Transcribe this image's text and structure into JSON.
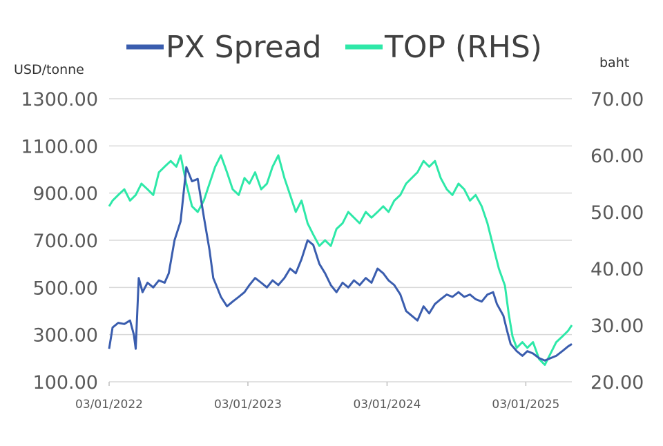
{
  "chart_data": {
    "type": "line",
    "title": "",
    "legend_placement": "top",
    "grid": "horizontal",
    "x_axis": {
      "type": "date",
      "range": [
        "2022-03-01",
        "2025-06-30"
      ],
      "ticks": [
        {
          "date": "2022-03-01",
          "label": "03/01/2022"
        },
        {
          "date": "2023-03-01",
          "label": "03/01/2023"
        },
        {
          "date": "2024-03-01",
          "label": "03/01/2024"
        },
        {
          "date": "2025-03-01",
          "label": "03/01/2025"
        }
      ]
    },
    "y_left": {
      "unit": "USD/tonne",
      "range": [
        100,
        1300
      ],
      "ticks": [
        {
          "value": 100,
          "label": "100.00"
        },
        {
          "value": 300,
          "label": "300.00"
        },
        {
          "value": 500,
          "label": "500.00"
        },
        {
          "value": 700,
          "label": "700.00"
        },
        {
          "value": 900,
          "label": "900.00"
        },
        {
          "value": 1100,
          "label": "1100.00"
        },
        {
          "value": 1300,
          "label": "1300.00"
        }
      ]
    },
    "y_right": {
      "unit": "baht",
      "range": [
        20,
        70
      ],
      "ticks": [
        {
          "value": 20,
          "label": "20.00"
        },
        {
          "value": 30,
          "label": "30.00"
        },
        {
          "value": 40,
          "label": "40.00"
        },
        {
          "value": 50,
          "label": "50.00"
        },
        {
          "value": 60,
          "label": "60.00"
        },
        {
          "value": 70,
          "label": "70.00"
        }
      ]
    },
    "series": [
      {
        "name": "PX Spread",
        "axis": "left",
        "color": "#3a5dae",
        "points": [
          [
            "2022-03-01",
            240
          ],
          [
            "2022-03-10",
            330
          ],
          [
            "2022-03-25",
            350
          ],
          [
            "2022-04-10",
            345
          ],
          [
            "2022-04-25",
            360
          ],
          [
            "2022-05-05",
            300
          ],
          [
            "2022-05-10",
            240
          ],
          [
            "2022-05-18",
            540
          ],
          [
            "2022-05-28",
            480
          ],
          [
            "2022-06-10",
            520
          ],
          [
            "2022-06-25",
            500
          ],
          [
            "2022-07-10",
            530
          ],
          [
            "2022-07-25",
            520
          ],
          [
            "2022-08-05",
            560
          ],
          [
            "2022-08-20",
            700
          ],
          [
            "2022-09-05",
            780
          ],
          [
            "2022-09-20",
            1010
          ],
          [
            "2022-10-05",
            950
          ],
          [
            "2022-10-20",
            960
          ],
          [
            "2022-11-05",
            800
          ],
          [
            "2022-11-20",
            660
          ],
          [
            "2022-11-30",
            540
          ],
          [
            "2022-12-10",
            500
          ],
          [
            "2022-12-20",
            460
          ],
          [
            "2023-01-05",
            420
          ],
          [
            "2023-01-20",
            440
          ],
          [
            "2023-02-05",
            460
          ],
          [
            "2023-02-20",
            480
          ],
          [
            "2023-03-05",
            510
          ],
          [
            "2023-03-20",
            540
          ],
          [
            "2023-04-05",
            520
          ],
          [
            "2023-04-20",
            500
          ],
          [
            "2023-05-05",
            530
          ],
          [
            "2023-05-20",
            510
          ],
          [
            "2023-06-05",
            540
          ],
          [
            "2023-06-20",
            580
          ],
          [
            "2023-07-05",
            560
          ],
          [
            "2023-07-20",
            620
          ],
          [
            "2023-08-05",
            700
          ],
          [
            "2023-08-20",
            680
          ],
          [
            "2023-09-05",
            600
          ],
          [
            "2023-09-20",
            560
          ],
          [
            "2023-10-05",
            510
          ],
          [
            "2023-10-20",
            480
          ],
          [
            "2023-11-05",
            520
          ],
          [
            "2023-11-20",
            500
          ],
          [
            "2023-12-05",
            530
          ],
          [
            "2023-12-20",
            510
          ],
          [
            "2024-01-05",
            540
          ],
          [
            "2024-01-20",
            520
          ],
          [
            "2024-02-05",
            580
          ],
          [
            "2024-02-20",
            560
          ],
          [
            "2024-03-05",
            530
          ],
          [
            "2024-03-20",
            510
          ],
          [
            "2024-04-05",
            470
          ],
          [
            "2024-04-20",
            400
          ],
          [
            "2024-05-05",
            380
          ],
          [
            "2024-05-20",
            360
          ],
          [
            "2024-06-05",
            420
          ],
          [
            "2024-06-20",
            390
          ],
          [
            "2024-07-05",
            430
          ],
          [
            "2024-07-20",
            450
          ],
          [
            "2024-08-05",
            470
          ],
          [
            "2024-08-20",
            460
          ],
          [
            "2024-09-05",
            480
          ],
          [
            "2024-09-20",
            460
          ],
          [
            "2024-10-05",
            470
          ],
          [
            "2024-10-20",
            450
          ],
          [
            "2024-11-05",
            440
          ],
          [
            "2024-11-20",
            470
          ],
          [
            "2024-12-05",
            480
          ],
          [
            "2024-12-15",
            430
          ],
          [
            "2025-01-01",
            380
          ],
          [
            "2025-01-10",
            320
          ],
          [
            "2025-01-20",
            260
          ],
          [
            "2025-02-05",
            230
          ],
          [
            "2025-02-20",
            210
          ],
          [
            "2025-03-05",
            230
          ],
          [
            "2025-03-20",
            220
          ],
          [
            "2025-04-05",
            200
          ],
          [
            "2025-04-20",
            190
          ],
          [
            "2025-05-05",
            200
          ],
          [
            "2025-05-20",
            210
          ],
          [
            "2025-06-05",
            230
          ],
          [
            "2025-06-20",
            250
          ],
          [
            "2025-06-30",
            260
          ]
        ]
      },
      {
        "name": "TOP (RHS)",
        "axis": "right",
        "color": "#2ee8a8",
        "points": [
          [
            "2022-03-01",
            51
          ],
          [
            "2022-03-10",
            52
          ],
          [
            "2022-03-25",
            53
          ],
          [
            "2022-04-10",
            54
          ],
          [
            "2022-04-25",
            52
          ],
          [
            "2022-05-10",
            53
          ],
          [
            "2022-05-25",
            55
          ],
          [
            "2022-06-10",
            54
          ],
          [
            "2022-06-25",
            53
          ],
          [
            "2022-07-10",
            57
          ],
          [
            "2022-07-25",
            58
          ],
          [
            "2022-08-10",
            59
          ],
          [
            "2022-08-25",
            58
          ],
          [
            "2022-09-05",
            60
          ],
          [
            "2022-09-20",
            55
          ],
          [
            "2022-10-05",
            51
          ],
          [
            "2022-10-20",
            50
          ],
          [
            "2022-11-05",
            52
          ],
          [
            "2022-11-20",
            55
          ],
          [
            "2022-12-05",
            58
          ],
          [
            "2022-12-20",
            60
          ],
          [
            "2023-01-05",
            57
          ],
          [
            "2023-01-20",
            54
          ],
          [
            "2023-02-05",
            53
          ],
          [
            "2023-02-20",
            56
          ],
          [
            "2023-03-05",
            55
          ],
          [
            "2023-03-20",
            57
          ],
          [
            "2023-04-05",
            54
          ],
          [
            "2023-04-20",
            55
          ],
          [
            "2023-05-05",
            58
          ],
          [
            "2023-05-20",
            60
          ],
          [
            "2023-06-05",
            56
          ],
          [
            "2023-06-20",
            53
          ],
          [
            "2023-07-05",
            50
          ],
          [
            "2023-07-20",
            52
          ],
          [
            "2023-08-05",
            48
          ],
          [
            "2023-08-20",
            46
          ],
          [
            "2023-09-05",
            44
          ],
          [
            "2023-09-20",
            45
          ],
          [
            "2023-10-05",
            44
          ],
          [
            "2023-10-20",
            47
          ],
          [
            "2023-11-05",
            48
          ],
          [
            "2023-11-20",
            50
          ],
          [
            "2023-12-05",
            49
          ],
          [
            "2023-12-20",
            48
          ],
          [
            "2024-01-05",
            50
          ],
          [
            "2024-01-20",
            49
          ],
          [
            "2024-02-05",
            50
          ],
          [
            "2024-02-20",
            51
          ],
          [
            "2024-03-05",
            50
          ],
          [
            "2024-03-20",
            52
          ],
          [
            "2024-04-05",
            53
          ],
          [
            "2024-04-20",
            55
          ],
          [
            "2024-05-05",
            56
          ],
          [
            "2024-05-20",
            57
          ],
          [
            "2024-06-05",
            59
          ],
          [
            "2024-06-20",
            58
          ],
          [
            "2024-07-05",
            59
          ],
          [
            "2024-07-20",
            56
          ],
          [
            "2024-08-05",
            54
          ],
          [
            "2024-08-20",
            53
          ],
          [
            "2024-09-05",
            55
          ],
          [
            "2024-09-20",
            54
          ],
          [
            "2024-10-05",
            52
          ],
          [
            "2024-10-20",
            53
          ],
          [
            "2024-11-05",
            51
          ],
          [
            "2024-11-20",
            48
          ],
          [
            "2024-12-05",
            44
          ],
          [
            "2024-12-20",
            40
          ],
          [
            "2025-01-05",
            37
          ],
          [
            "2025-01-15",
            32
          ],
          [
            "2025-01-25",
            28
          ],
          [
            "2025-02-05",
            26
          ],
          [
            "2025-02-20",
            27
          ],
          [
            "2025-03-05",
            26
          ],
          [
            "2025-03-20",
            27
          ],
          [
            "2025-04-05",
            24
          ],
          [
            "2025-04-20",
            23
          ],
          [
            "2025-05-05",
            25
          ],
          [
            "2025-05-20",
            27
          ],
          [
            "2025-06-05",
            28
          ],
          [
            "2025-06-20",
            29
          ],
          [
            "2025-06-30",
            30
          ]
        ]
      }
    ]
  }
}
